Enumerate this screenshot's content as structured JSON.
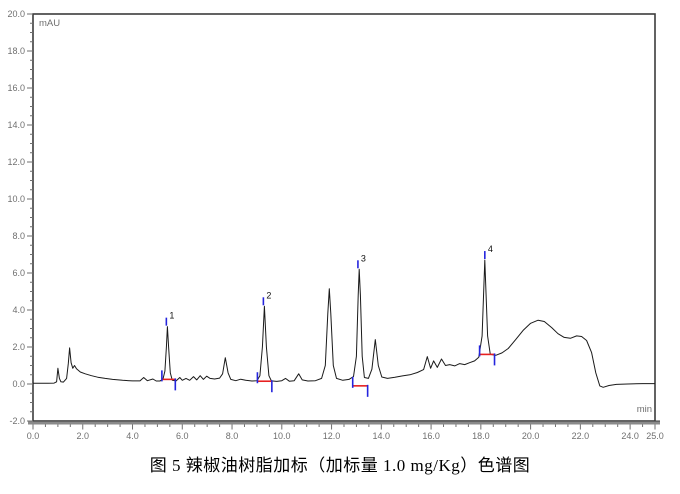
{
  "figure": {
    "caption": "图 5 辣椒油树脂加标（加标量 1.0 mg/Kg）色谱图"
  },
  "chart_data": {
    "type": "line",
    "title": "",
    "description": "HPLC chromatogram, spiked capsicum oleoresin sample (spike level 1.0 mg/Kg), 4 numbered peaks with red integration baselines and blue start/end/apex tick marks",
    "x_axis": {
      "unit_label": "min",
      "min": 0.0,
      "max": 25.0,
      "major_tick_step": 2.0,
      "minor_tick_step": 0.5,
      "major_tick_positions": [
        0,
        2,
        4,
        6,
        8,
        10,
        12,
        14,
        16,
        18,
        20,
        22,
        24,
        25
      ],
      "major_tick_labels": [
        "0.0",
        "2.0",
        "4.0",
        "6.0",
        "8.0",
        "10.0",
        "12.0",
        "14.0",
        "16.0",
        "18.0",
        "20.0",
        "22.0",
        "24.0",
        "25.0"
      ]
    },
    "y_axis": {
      "unit_label": "mAU",
      "min": -2.0,
      "max": 20.0,
      "major_tick_step": 2.0,
      "minor_tick_step": 0.5,
      "major_tick_positions": [
        -2,
        0,
        2,
        4,
        6,
        8,
        10,
        12,
        14,
        16,
        18,
        20
      ],
      "major_tick_labels": [
        "-2.0",
        "0.0",
        "2.0",
        "4.0",
        "6.0",
        "8.0",
        "10.0",
        "12.0",
        "14.0",
        "16.0",
        "18.0",
        "20.0"
      ]
    },
    "grid": false,
    "legend": null,
    "peaks": [
      {
        "label": "1",
        "retention_time_min": 5.4,
        "apex_mau": 3.1,
        "baseline_mau": 0.25,
        "baseline_start_min": 5.18,
        "baseline_end_min": 5.72
      },
      {
        "label": "2",
        "retention_time_min": 9.3,
        "apex_mau": 4.2,
        "baseline_mau": 0.15,
        "baseline_start_min": 9.02,
        "baseline_end_min": 9.6
      },
      {
        "label": "3",
        "retention_time_min": 13.1,
        "apex_mau": 6.2,
        "baseline_mau": -0.1,
        "baseline_start_min": 12.85,
        "baseline_end_min": 13.45
      },
      {
        "label": "4",
        "retention_time_min": 18.2,
        "apex_mau": 6.7,
        "baseline_mau": 1.6,
        "baseline_start_min": 17.95,
        "baseline_end_min": 18.55
      }
    ],
    "unlabeled_features": [
      {
        "retention_time_min": 1.47,
        "apex_mau": 1.95,
        "note": "solvent front spike"
      },
      {
        "retention_time_min": 7.73,
        "apex_mau": 1.4
      },
      {
        "retention_time_min": 11.91,
        "apex_mau": 5.15
      },
      {
        "retention_time_min": 13.76,
        "apex_mau": 2.4
      },
      {
        "retention_time_min": 20.3,
        "apex_mau": 3.45,
        "note": "broad matrix hump 19-22 min"
      }
    ],
    "trace_points": [
      [
        0.0,
        0.04
      ],
      [
        0.6,
        0.04
      ],
      [
        0.85,
        0.05
      ],
      [
        0.95,
        0.12
      ],
      [
        1.0,
        0.85
      ],
      [
        1.06,
        0.3
      ],
      [
        1.12,
        0.12
      ],
      [
        1.22,
        0.1
      ],
      [
        1.35,
        0.3
      ],
      [
        1.42,
        1.1
      ],
      [
        1.47,
        1.95
      ],
      [
        1.53,
        1.15
      ],
      [
        1.6,
        0.85
      ],
      [
        1.67,
        1.0
      ],
      [
        1.75,
        0.82
      ],
      [
        1.9,
        0.65
      ],
      [
        2.1,
        0.55
      ],
      [
        2.35,
        0.45
      ],
      [
        2.6,
        0.37
      ],
      [
        2.9,
        0.3
      ],
      [
        3.2,
        0.25
      ],
      [
        3.6,
        0.2
      ],
      [
        4.0,
        0.17
      ],
      [
        4.3,
        0.17
      ],
      [
        4.45,
        0.35
      ],
      [
        4.6,
        0.18
      ],
      [
        4.82,
        0.27
      ],
      [
        4.95,
        0.16
      ],
      [
        5.1,
        0.16
      ],
      [
        5.22,
        0.25
      ],
      [
        5.3,
        0.7
      ],
      [
        5.36,
        2.0
      ],
      [
        5.4,
        3.1
      ],
      [
        5.45,
        2.0
      ],
      [
        5.52,
        0.6
      ],
      [
        5.6,
        0.2
      ],
      [
        5.75,
        0.17
      ],
      [
        5.9,
        0.35
      ],
      [
        6.0,
        0.2
      ],
      [
        6.15,
        0.3
      ],
      [
        6.3,
        0.2
      ],
      [
        6.45,
        0.4
      ],
      [
        6.58,
        0.22
      ],
      [
        6.72,
        0.45
      ],
      [
        6.85,
        0.25
      ],
      [
        6.98,
        0.42
      ],
      [
        7.12,
        0.3
      ],
      [
        7.3,
        0.27
      ],
      [
        7.5,
        0.32
      ],
      [
        7.62,
        0.55
      ],
      [
        7.73,
        1.42
      ],
      [
        7.84,
        0.6
      ],
      [
        7.95,
        0.25
      ],
      [
        8.15,
        0.18
      ],
      [
        8.35,
        0.26
      ],
      [
        8.55,
        0.2
      ],
      [
        8.8,
        0.16
      ],
      [
        9.0,
        0.18
      ],
      [
        9.12,
        0.45
      ],
      [
        9.22,
        2.0
      ],
      [
        9.3,
        4.2
      ],
      [
        9.38,
        2.0
      ],
      [
        9.48,
        0.45
      ],
      [
        9.58,
        0.17
      ],
      [
        9.8,
        0.14
      ],
      [
        10.0,
        0.18
      ],
      [
        10.15,
        0.3
      ],
      [
        10.3,
        0.15
      ],
      [
        10.5,
        0.18
      ],
      [
        10.68,
        0.55
      ],
      [
        10.82,
        0.22
      ],
      [
        11.05,
        0.16
      ],
      [
        11.35,
        0.18
      ],
      [
        11.6,
        0.3
      ],
      [
        11.75,
        1.0
      ],
      [
        11.85,
        3.8
      ],
      [
        11.91,
        5.15
      ],
      [
        11.97,
        3.8
      ],
      [
        12.07,
        1.0
      ],
      [
        12.2,
        0.3
      ],
      [
        12.45,
        0.2
      ],
      [
        12.7,
        0.25
      ],
      [
        12.88,
        0.4
      ],
      [
        13.0,
        1.5
      ],
      [
        13.07,
        4.8
      ],
      [
        13.11,
        6.2
      ],
      [
        13.16,
        4.8
      ],
      [
        13.23,
        1.5
      ],
      [
        13.32,
        0.35
      ],
      [
        13.48,
        0.3
      ],
      [
        13.62,
        0.8
      ],
      [
        13.76,
        2.4
      ],
      [
        13.88,
        1.0
      ],
      [
        14.02,
        0.38
      ],
      [
        14.25,
        0.3
      ],
      [
        14.55,
        0.36
      ],
      [
        14.85,
        0.44
      ],
      [
        15.15,
        0.5
      ],
      [
        15.45,
        0.62
      ],
      [
        15.7,
        0.78
      ],
      [
        15.85,
        1.48
      ],
      [
        15.98,
        0.85
      ],
      [
        16.1,
        1.25
      ],
      [
        16.25,
        0.9
      ],
      [
        16.42,
        1.35
      ],
      [
        16.58,
        1.0
      ],
      [
        16.75,
        1.05
      ],
      [
        16.95,
        0.98
      ],
      [
        17.15,
        1.1
      ],
      [
        17.35,
        1.05
      ],
      [
        17.55,
        1.15
      ],
      [
        17.75,
        1.25
      ],
      [
        17.92,
        1.45
      ],
      [
        18.05,
        2.6
      ],
      [
        18.16,
        6.7
      ],
      [
        18.27,
        2.6
      ],
      [
        18.38,
        1.6
      ],
      [
        18.6,
        1.55
      ],
      [
        18.85,
        1.68
      ],
      [
        19.1,
        1.92
      ],
      [
        19.4,
        2.4
      ],
      [
        19.7,
        2.9
      ],
      [
        20.0,
        3.28
      ],
      [
        20.3,
        3.45
      ],
      [
        20.55,
        3.38
      ],
      [
        20.85,
        3.05
      ],
      [
        21.1,
        2.72
      ],
      [
        21.35,
        2.52
      ],
      [
        21.6,
        2.47
      ],
      [
        21.85,
        2.6
      ],
      [
        22.05,
        2.57
      ],
      [
        22.25,
        2.35
      ],
      [
        22.45,
        1.7
      ],
      [
        22.62,
        0.6
      ],
      [
        22.78,
        -0.1
      ],
      [
        22.92,
        -0.18
      ],
      [
        23.15,
        -0.08
      ],
      [
        23.45,
        -0.02
      ],
      [
        23.9,
        0.0
      ],
      [
        24.5,
        0.02
      ],
      [
        25.0,
        0.02
      ]
    ],
    "colors": {
      "trace": "#1a1a1a",
      "peak_baseline_marker": "#e62020",
      "peak_tick_marker": "#2424dd",
      "peak_label_text": "#111111",
      "axis_text": "#6f6f6f",
      "frame": "#3c3c3c",
      "axis_bar": "#8a8a8a"
    }
  }
}
